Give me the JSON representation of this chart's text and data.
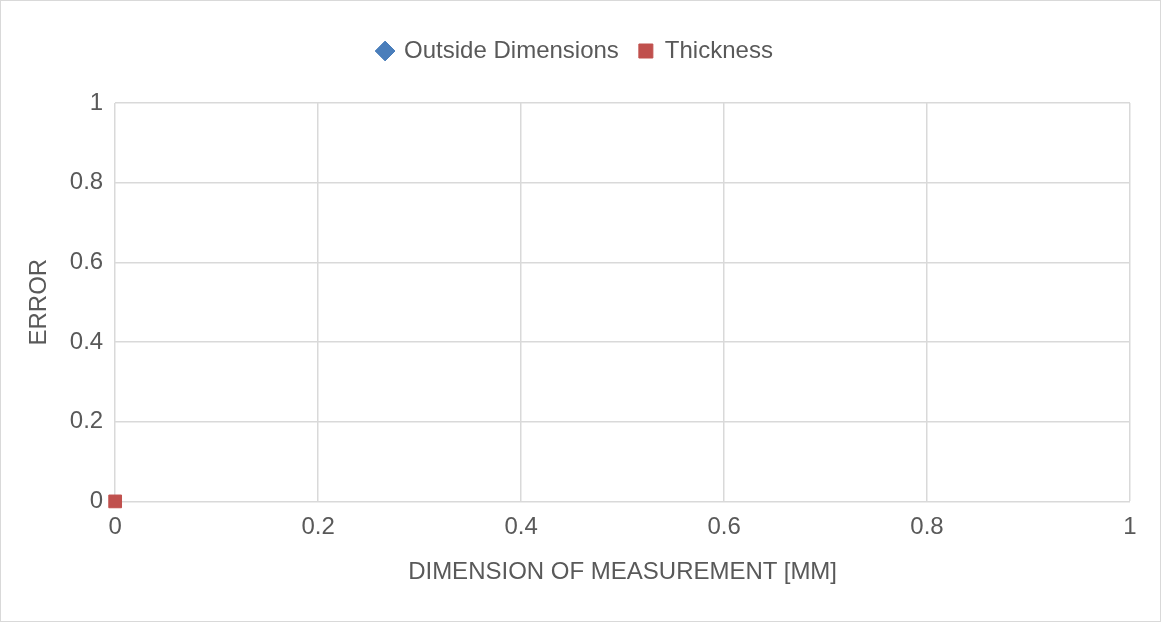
{
  "chart_data": {
    "type": "scatter",
    "xlabel": "DIMENSION OF MEASUREMENT [MM]",
    "ylabel": "ERROR",
    "series": [
      {
        "name": "Outside Dimensions",
        "color": "#4a7ebb",
        "marker": "diamond"
      },
      {
        "name": "Thickness",
        "color": "#c0504d",
        "marker": "square",
        "x": [
          0
        ],
        "values": [
          0
        ]
      }
    ],
    "xlim": [
      0,
      1
    ],
    "xticks": [
      0,
      0.2,
      0.4,
      0.6,
      0.8,
      1
    ],
    "ylim": [
      0,
      1
    ],
    "yticks": [
      0,
      0.2,
      0.4,
      0.6,
      0.8,
      1
    ],
    "grid": true,
    "legend": "top"
  }
}
